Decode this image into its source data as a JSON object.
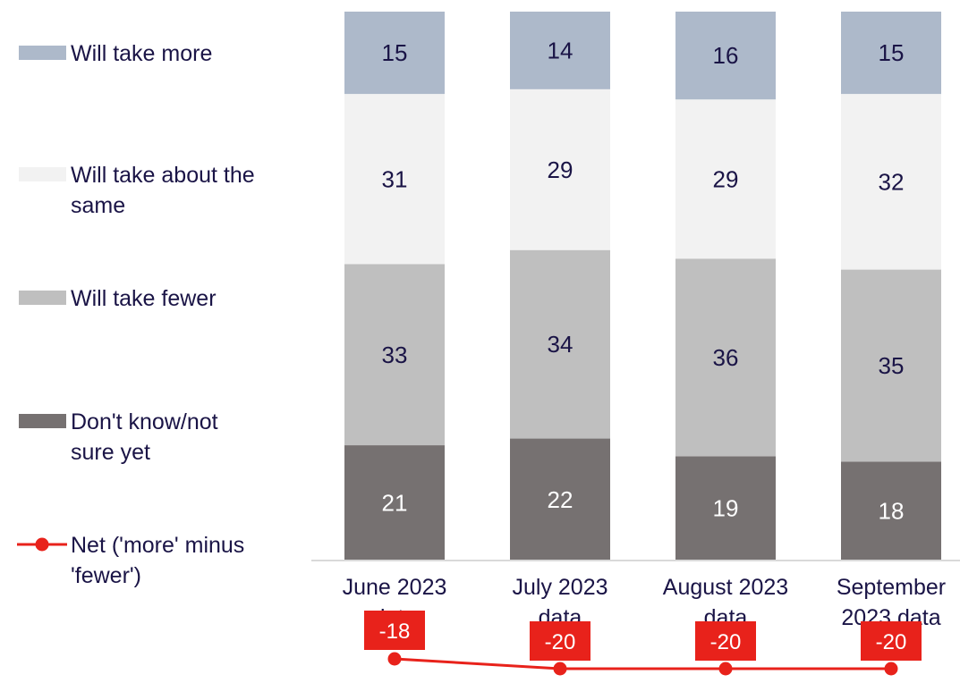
{
  "chart_data": {
    "type": "bar",
    "stacked": true,
    "categories": [
      "June 2023 data",
      "July 2023 data",
      "August 2023 data",
      "September 2023 data"
    ],
    "category_label_lines": [
      [
        "June 2023",
        "data"
      ],
      [
        "July 2023",
        "data"
      ],
      [
        "August 2023",
        "data"
      ],
      [
        "September",
        "2023 data"
      ]
    ],
    "series": [
      {
        "name": "Don't know/not sure yet",
        "legend_lines": [
          "Don't know/not",
          "sure yet"
        ],
        "color": "#767171",
        "label_color": "#ffffff",
        "values": [
          21,
          22,
          19,
          18
        ]
      },
      {
        "name": "Will take fewer",
        "legend_lines": [
          "Will take fewer"
        ],
        "color": "#bfbfbf",
        "label_color": "#1a1446",
        "values": [
          33,
          34,
          36,
          35
        ]
      },
      {
        "name": "Will take about the same",
        "legend_lines": [
          "Will take about the",
          "same"
        ],
        "color": "#f2f2f2",
        "label_color": "#1a1446",
        "values": [
          31,
          29,
          29,
          32
        ]
      },
      {
        "name": "Will take more",
        "legend_lines": [
          "Will take more"
        ],
        "color": "#adb9ca",
        "label_color": "#1a1446",
        "values": [
          15,
          14,
          16,
          15
        ]
      }
    ],
    "line_series": {
      "name": "Net ('more' minus 'fewer')",
      "legend_lines": [
        "Net ('more' minus",
        "'fewer')"
      ],
      "color": "#e8221b",
      "values": [
        -18,
        -20,
        -20,
        -20
      ],
      "labels": [
        "-18",
        "-20",
        "-20",
        "-20"
      ]
    },
    "ylim": [
      0,
      100
    ],
    "legend_position": "left",
    "grid": false
  }
}
